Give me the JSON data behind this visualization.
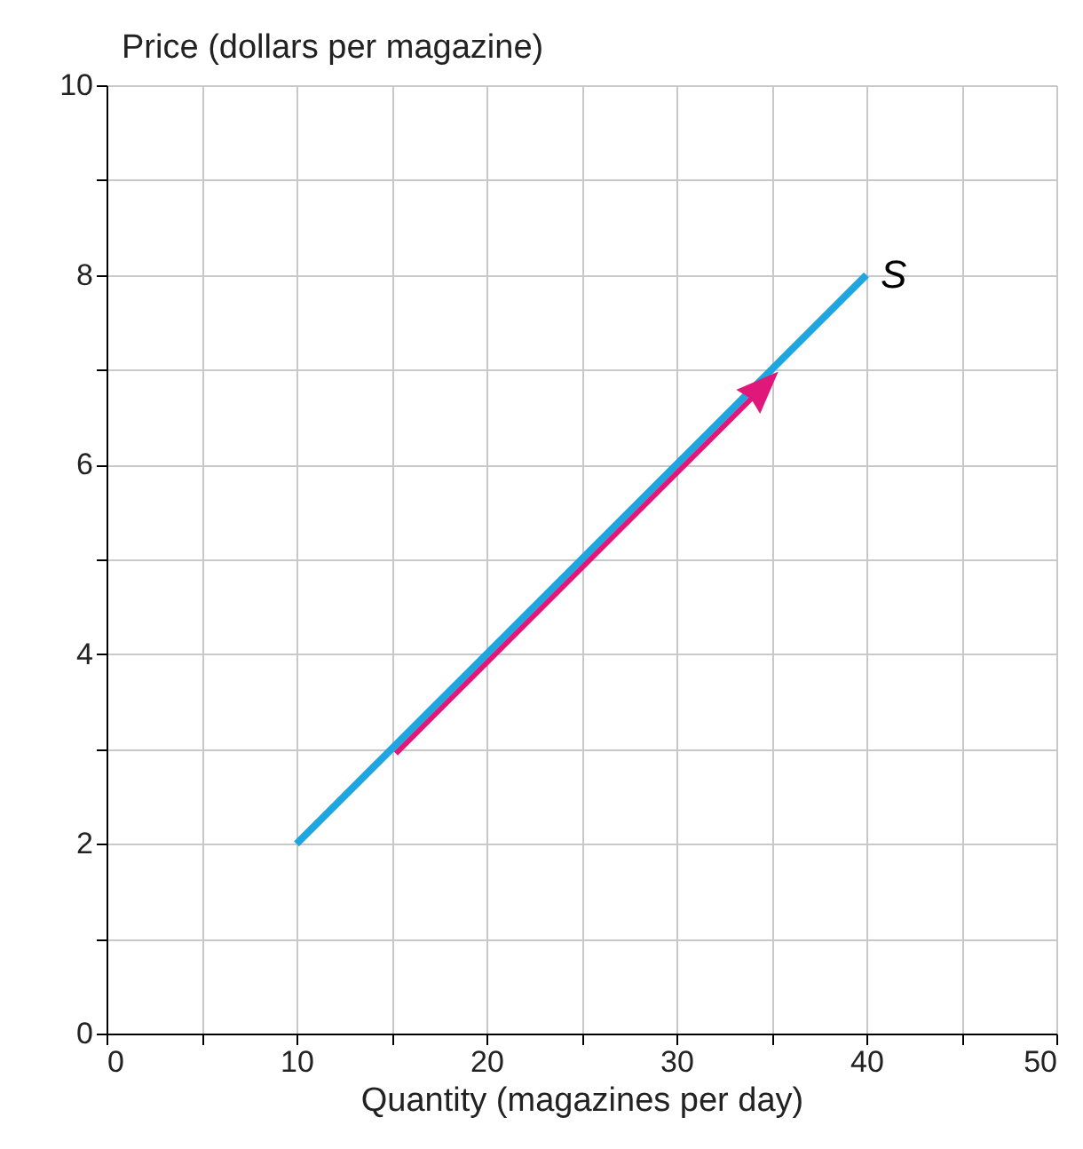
{
  "chart_data": {
    "type": "line",
    "xlabel": "Quantity (magazines per day)",
    "ylabel": "Price (dollars per magazine)",
    "xlim": [
      0,
      50
    ],
    "xticks": [
      0,
      {
        "value": 5,
        "label": null
      },
      10,
      {
        "value": 15,
        "label": null
      },
      20,
      {
        "value": 25,
        "label": null
      },
      30,
      {
        "value": 35,
        "label": null
      },
      40,
      {
        "value": 45,
        "label": null
      },
      50
    ],
    "ylim": [
      0,
      10
    ],
    "yticks": [
      0,
      {
        "value": 1,
        "label": null
      },
      2,
      {
        "value": 3,
        "label": null
      },
      4,
      {
        "value": 5,
        "label": null
      },
      6,
      {
        "value": 7,
        "label": null
      },
      8,
      {
        "value": 9,
        "label": null
      },
      10
    ],
    "grid": true,
    "marker": "none",
    "line_style": "solid",
    "series": [
      {
        "name": "S",
        "color": "#1fa5df",
        "x": [
          10,
          40
        ],
        "values": [
          2,
          8
        ]
      }
    ]
  }
}
